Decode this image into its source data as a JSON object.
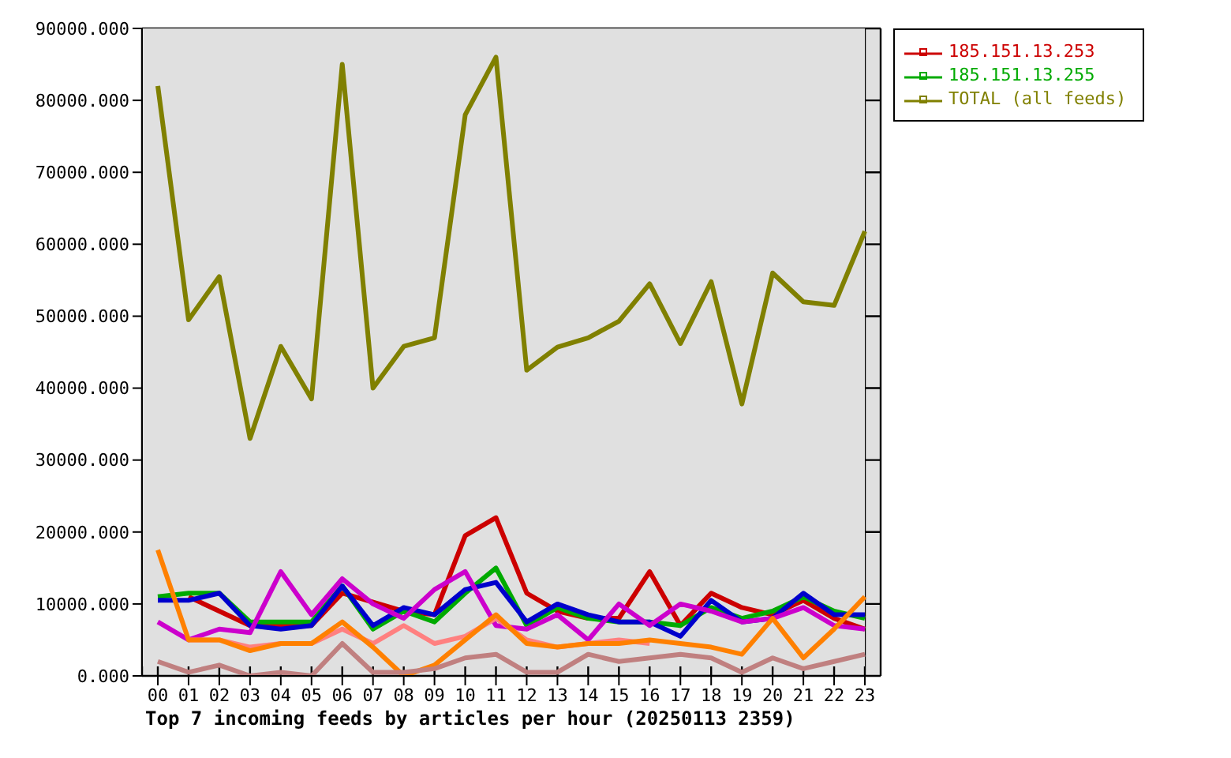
{
  "chart_data": {
    "type": "line",
    "title": "Top 7 incoming feeds by articles per hour (20250113 2359)",
    "categories": [
      "00",
      "01",
      "02",
      "03",
      "04",
      "05",
      "06",
      "07",
      "08",
      "09",
      "10",
      "11",
      "12",
      "13",
      "14",
      "15",
      "16",
      "17",
      "18",
      "19",
      "20",
      "21",
      "22",
      "23"
    ],
    "ylim": [
      0,
      90000
    ],
    "yticks": [
      {
        "value": 0,
        "label": "0.000"
      },
      {
        "value": 10000,
        "label": "10000.000"
      },
      {
        "value": 20000,
        "label": "20000.000"
      },
      {
        "value": 30000,
        "label": "30000.000"
      },
      {
        "value": 40000,
        "label": "40000.000"
      },
      {
        "value": 50000,
        "label": "50000.000"
      },
      {
        "value": 60000,
        "label": "60000.000"
      },
      {
        "value": 70000,
        "label": "70000.000"
      },
      {
        "value": 80000,
        "label": "80000.000"
      },
      {
        "value": 90000,
        "label": "90000.000"
      }
    ],
    "grid": true,
    "legend": "top right",
    "line_style": "solid",
    "series": [
      {
        "name": "185.151.13.253",
        "color": "#cc0000",
        "values": [
          null,
          11000,
          null,
          7000,
          7000,
          7000,
          11500,
          null,
          9000,
          8500,
          19500,
          22000,
          11500,
          9000,
          8000,
          8000,
          14500,
          7000,
          11500,
          9500,
          8500,
          10500,
          8000,
          6500
        ]
      },
      {
        "name": "185.151.13.255",
        "color": "#00aa00",
        "values": [
          11000,
          11500,
          11500,
          7500,
          7500,
          7500,
          12500,
          6500,
          9000,
          7500,
          11500,
          15000,
          7000,
          9500,
          8000,
          7500,
          7500,
          7000,
          9500,
          8000,
          9000,
          11000,
          9000,
          8000
        ]
      },
      {
        "color": "#0000cc",
        "values": [
          10500,
          10500,
          11500,
          7000,
          6500,
          7000,
          12500,
          7000,
          9500,
          8500,
          12000,
          13000,
          7500,
          10000,
          8500,
          7500,
          7500,
          5500,
          10500,
          7500,
          8000,
          11500,
          8500,
          8500
        ]
      },
      {
        "color": "#cc00cc",
        "values": [
          7500,
          5000,
          6500,
          6000,
          14500,
          8500,
          13500,
          10000,
          8000,
          12000,
          14500,
          7000,
          6500,
          8500,
          5000,
          10000,
          7000,
          10000,
          9000,
          7500,
          8000,
          9500,
          7000,
          6500
        ]
      },
      {
        "color": "#ff8080",
        "values": [
          null,
          5000,
          5000,
          4000,
          4500,
          4500,
          6500,
          4500,
          7000,
          4500,
          5500,
          8000,
          5000,
          4000,
          4500,
          5000,
          4500,
          null,
          null,
          null,
          null,
          null,
          null,
          null
        ]
      },
      {
        "color": "#ff8000",
        "values": [
          17500,
          5000,
          5000,
          3500,
          4500,
          4500,
          7500,
          4000,
          0,
          1500,
          5000,
          8500,
          4500,
          4000,
          4500,
          4500,
          5000,
          4500,
          4000,
          3000,
          8000,
          2500,
          6500,
          11000
        ]
      },
      {
        "color": "#c08080",
        "values": [
          2000,
          500,
          1500,
          0,
          500,
          0,
          4500,
          500,
          500,
          1000,
          2500,
          3000,
          500,
          500,
          3000,
          2000,
          2500,
          3000,
          2500,
          500,
          2500,
          1000,
          2000,
          3000
        ]
      },
      {
        "name": "TOTAL (all feeds)",
        "color": "#808000",
        "values": [
          82000,
          49500,
          55500,
          33000,
          45800,
          38500,
          85000,
          40000,
          45800,
          47000,
          78000,
          86000,
          42500,
          45700,
          47000,
          49300,
          54500,
          46200,
          54800,
          37800,
          56000,
          52000,
          51500,
          61800
        ]
      }
    ]
  }
}
